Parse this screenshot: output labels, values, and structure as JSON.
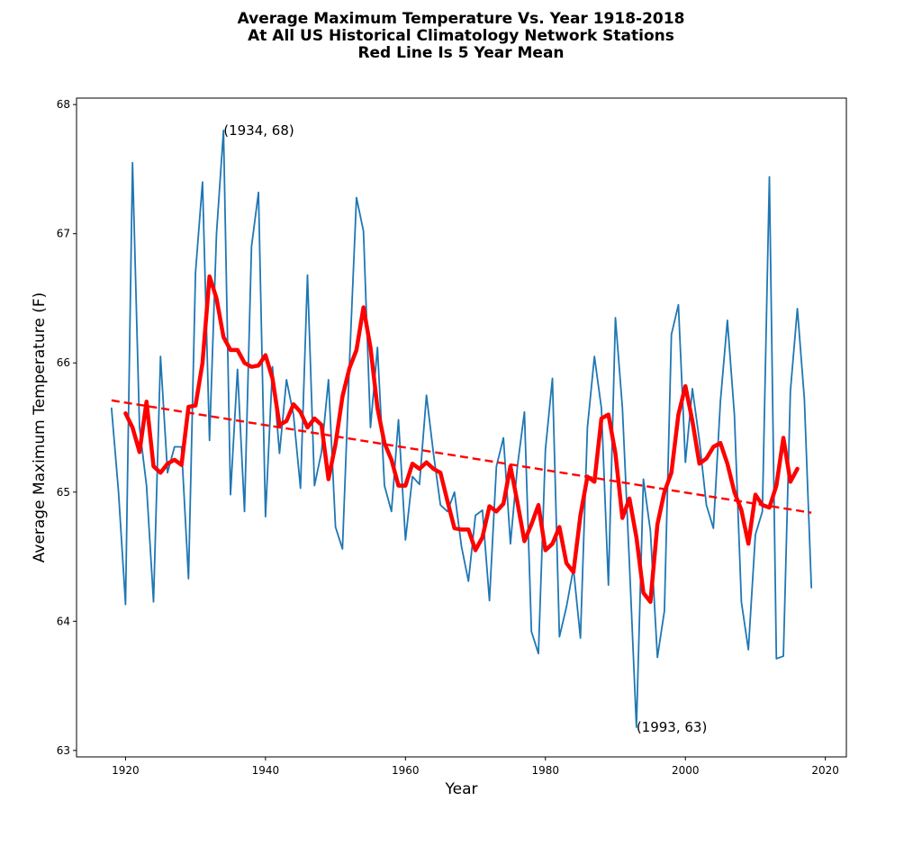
{
  "chart_data": {
    "type": "line",
    "title_lines": [
      "Average Maximum Temperature Vs. Year 1918-2018",
      "At All US Historical Climatology Network Stations",
      "Red Line Is 5 Year Mean"
    ],
    "xlabel": "Year",
    "ylabel": "Average Maximum Temperature (F)",
    "xlim": [
      1913,
      2023
    ],
    "ylim": [
      62.95,
      68.05
    ],
    "xticks": [
      1920,
      1940,
      1960,
      1980,
      2000,
      2020
    ],
    "yticks": [
      63,
      64,
      65,
      66,
      67,
      68
    ],
    "grid": false,
    "series": [
      {
        "color": "#1f77b4",
        "x": [
          1918,
          1919,
          1920,
          1921,
          1922,
          1923,
          1924,
          1925,
          1926,
          1927,
          1928,
          1929,
          1930,
          1931,
          1932,
          1933,
          1934,
          1935,
          1936,
          1937,
          1938,
          1939,
          1940,
          1941,
          1942,
          1943,
          1944,
          1945,
          1946,
          1947,
          1948,
          1949,
          1950,
          1951,
          1952,
          1953,
          1954,
          1955,
          1956,
          1957,
          1958,
          1959,
          1960,
          1961,
          1962,
          1963,
          1964,
          1965,
          1966,
          1967,
          1968,
          1969,
          1970,
          1971,
          1972,
          1973,
          1974,
          1975,
          1976,
          1977,
          1978,
          1979,
          1980,
          1981,
          1982,
          1983,
          1984,
          1985,
          1986,
          1987,
          1988,
          1989,
          1990,
          1991,
          1992,
          1993,
          1994,
          1995,
          1996,
          1997,
          1998,
          1999,
          2000,
          2001,
          2002,
          2003,
          2004,
          2005,
          2006,
          2007,
          2008,
          2009,
          2010,
          2011,
          2012,
          2013,
          2014,
          2015,
          2016,
          2017,
          2018
        ],
        "values": [
          65.65,
          65.0,
          64.13,
          67.55,
          65.5,
          65.05,
          64.15,
          66.05,
          65.15,
          65.35,
          65.35,
          64.33,
          66.7,
          67.4,
          65.4,
          67.0,
          67.8,
          64.98,
          65.95,
          64.85,
          66.9,
          67.32,
          64.81,
          65.97,
          65.3,
          65.87,
          65.6,
          65.03,
          66.68,
          65.05,
          65.31,
          65.87,
          64.73,
          64.56,
          66.0,
          67.28,
          67.02,
          65.5,
          66.12,
          65.05,
          64.85,
          65.56,
          64.63,
          65.12,
          65.06,
          65.75,
          65.3,
          64.9,
          64.85,
          65.0,
          64.58,
          64.31,
          64.82,
          64.86,
          64.16,
          65.2,
          65.42,
          64.6,
          65.2,
          65.62,
          63.92,
          63.75,
          65.33,
          65.88,
          63.88,
          64.11,
          64.41,
          63.87,
          65.5,
          66.05,
          65.65,
          64.28,
          66.35,
          65.65,
          64.45,
          63.18,
          65.1,
          64.7,
          63.72,
          64.08,
          66.22,
          66.45,
          65.23,
          65.8,
          65.4,
          64.9,
          64.72,
          65.7,
          66.33,
          65.6,
          64.15,
          63.78,
          64.67,
          64.85,
          67.44,
          63.71,
          63.73,
          65.78,
          66.42,
          65.72,
          64.26
        ]
      },
      {
        "color": "#ff0000",
        "x": [
          1920,
          1921,
          1922,
          1923,
          1924,
          1925,
          1926,
          1927,
          1928,
          1929,
          1930,
          1931,
          1932,
          1933,
          1934,
          1935,
          1936,
          1937,
          1938,
          1939,
          1940,
          1941,
          1942,
          1943,
          1944,
          1945,
          1946,
          1947,
          1948,
          1949,
          1950,
          1951,
          1952,
          1953,
          1954,
          1955,
          1956,
          1957,
          1958,
          1959,
          1960,
          1961,
          1962,
          1963,
          1964,
          1965,
          1966,
          1967,
          1968,
          1969,
          1970,
          1971,
          1972,
          1973,
          1974,
          1975,
          1976,
          1977,
          1978,
          1979,
          1980,
          1981,
          1982,
          1983,
          1984,
          1985,
          1986,
          1987,
          1988,
          1989,
          1990,
          1991,
          1992,
          1993,
          1994,
          1995,
          1996,
          1997,
          1998,
          1999,
          2000,
          2001,
          2002,
          2003,
          2004,
          2005,
          2006,
          2007,
          2008,
          2009,
          2010,
          2011,
          2012,
          2013,
          2014,
          2015,
          2016
        ],
        "values": [
          65.61,
          65.5,
          65.31,
          65.7,
          65.2,
          65.15,
          65.22,
          65.25,
          65.21,
          65.66,
          65.67,
          66.0,
          66.67,
          66.5,
          66.2,
          66.1,
          66.1,
          66.0,
          65.97,
          65.98,
          66.06,
          65.88,
          65.52,
          65.55,
          65.68,
          65.62,
          65.5,
          65.57,
          65.52,
          65.1,
          65.37,
          65.74,
          65.96,
          66.1,
          66.43,
          66.12,
          65.65,
          65.38,
          65.25,
          65.05,
          65.05,
          65.22,
          65.18,
          65.23,
          65.18,
          65.15,
          64.93,
          64.72,
          64.71,
          64.71,
          64.55,
          64.65,
          64.89,
          64.85,
          64.91,
          65.2,
          64.92,
          64.62,
          64.75,
          64.9,
          64.55,
          64.6,
          64.73,
          64.45,
          64.38,
          64.82,
          65.12,
          65.08,
          65.57,
          65.6,
          65.3,
          64.8,
          64.95,
          64.65,
          64.22,
          64.15,
          64.75,
          65.0,
          65.15,
          65.6,
          65.82,
          65.55,
          65.22,
          65.26,
          65.35,
          65.38,
          65.22,
          65.0,
          64.86,
          64.6,
          64.98,
          64.9,
          64.88,
          65.05,
          65.42,
          65.08,
          65.18
        ]
      }
    ],
    "trend": {
      "color": "#ff0000",
      "style": "dashed",
      "x": [
        1918,
        2018
      ],
      "y": [
        65.71,
        64.84
      ]
    },
    "annotations": [
      {
        "text": "(1934, 68)",
        "x": 1934,
        "y": 67.8
      },
      {
        "text": "(1993, 63)",
        "x": 1993,
        "y": 63.18
      }
    ]
  }
}
